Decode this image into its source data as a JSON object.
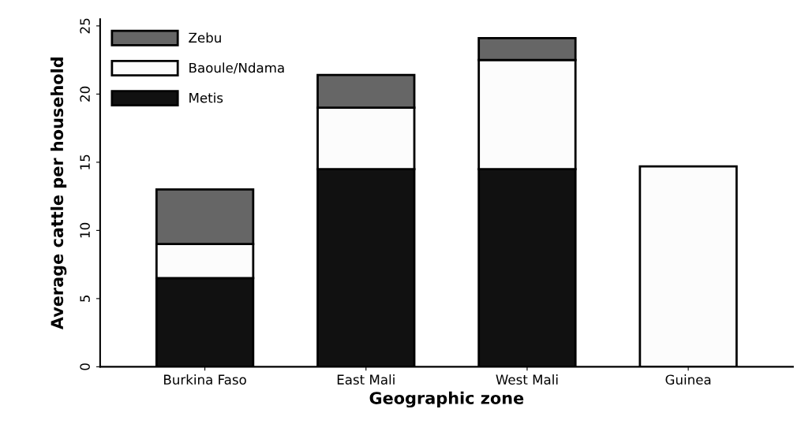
{
  "chart_data": {
    "type": "bar",
    "stacked": true,
    "xlabel": "Geographic zone",
    "ylabel": "Average cattle per household",
    "categories": [
      "Burkina Faso",
      "East Mali",
      "West Mali",
      "Guinea"
    ],
    "series": [
      {
        "name": "Metis",
        "color": "#111111",
        "values": [
          6.5,
          14.5,
          14.5,
          0
        ]
      },
      {
        "name": "Baoule/Ndama",
        "color": "#fcfcfc",
        "values": [
          2.5,
          4.5,
          8,
          14.7
        ]
      },
      {
        "name": "Zebu",
        "color": "#666666",
        "values": [
          4,
          2.4,
          1.6,
          0
        ]
      }
    ],
    "ylim": [
      0,
      25.5
    ],
    "yticks": [
      0,
      5,
      10,
      15,
      20,
      25
    ],
    "grid": false,
    "legend": "top left"
  }
}
